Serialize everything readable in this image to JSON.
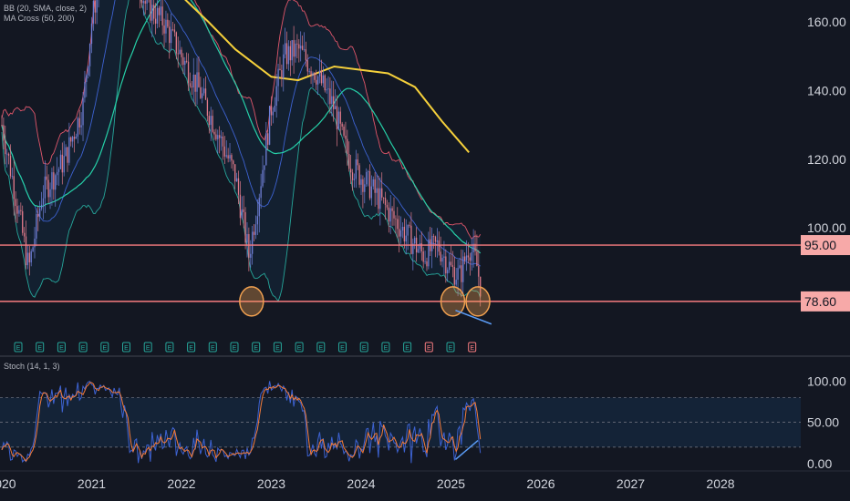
{
  "indicators": {
    "bb_label": "BB (20, SMA, close, 2)",
    "ma_label": "MA Cross (50, 200)",
    "stoch_label": "Stoch (14, 1, 3)"
  },
  "colors": {
    "background": "#131722",
    "bullish": "#6f7fd6",
    "bearish": "#e07a8a",
    "bb_upper": "#e0566a",
    "bb_lower": "#26a69a",
    "bb_basis": "#3d62d1",
    "ma50": "#26d0a8",
    "ma200": "#f5d03b",
    "level_line": "#f77c80",
    "level_tag": "#f7a9a8",
    "circle": "#f0a050",
    "trendline": "#5b9cf6",
    "stoch_k": "#3d62d1",
    "stoch_d": "#f57c3a"
  },
  "chart_data": [
    {
      "type": "candlestick",
      "title": "",
      "x_ticks": [
        "2020",
        "2021",
        "2022",
        "2023",
        "2024",
        "2025",
        "2026",
        "2027",
        "2028"
      ],
      "y_ticks": [
        "160.00",
        "140.00",
        "120.00",
        "100.00"
      ],
      "ylim": [
        75,
        165
      ],
      "horizontal_levels": [
        {
          "value": 95.0,
          "label": "95.00"
        },
        {
          "value": 78.6,
          "label": "78.60"
        }
      ],
      "ma200_points": [
        [
          2021.9,
          170
        ],
        [
          2022.3,
          160
        ],
        [
          2022.6,
          152
        ],
        [
          2023.0,
          144
        ],
        [
          2023.3,
          143
        ],
        [
          2023.7,
          147
        ],
        [
          2024.0,
          146
        ],
        [
          2024.3,
          145
        ],
        [
          2024.6,
          141
        ],
        [
          2024.9,
          131
        ],
        [
          2025.2,
          122
        ]
      ],
      "highlight_circles": [
        {
          "x": 2022.78,
          "y": 78.6
        },
        {
          "x": 2025.02,
          "y": 78.6
        },
        {
          "x": 2025.3,
          "y": 78.6
        }
      ],
      "trendline": [
        [
          2025.05,
          76
        ],
        [
          2025.45,
          72
        ]
      ],
      "earnings_markers": [
        "E",
        "E",
        "E",
        "E",
        "E",
        "E",
        "E",
        "E",
        "E",
        "E",
        "E",
        "E",
        "E",
        "E",
        "E",
        "E",
        "E",
        "E",
        "E",
        "E",
        "E",
        "E"
      ]
    },
    {
      "type": "line",
      "title": "Stoch (14, 1, 3)",
      "y_ticks": [
        "100.00",
        "50.00",
        "0.00"
      ],
      "ylim": [
        0,
        100
      ],
      "bands": [
        20,
        50,
        80
      ],
      "trendline": [
        [
          2025.05,
          5
        ],
        [
          2025.3,
          28
        ]
      ]
    }
  ]
}
